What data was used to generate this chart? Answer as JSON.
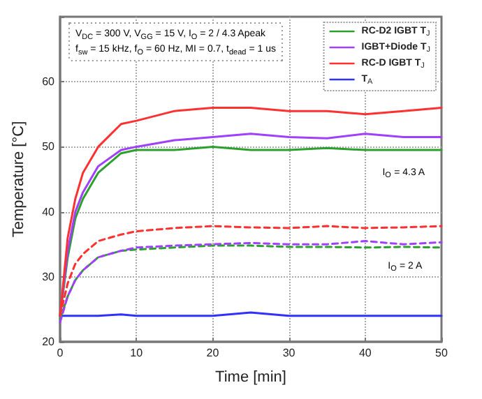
{
  "chart_data": {
    "type": "line",
    "xlabel": "Time [min]",
    "ylabel": "Temperature [°C]",
    "xlim": [
      0,
      50
    ],
    "xticks": [
      0,
      10,
      20,
      30,
      40,
      50
    ],
    "ylim": [
      20,
      70
    ],
    "yticks": [
      20,
      30,
      40,
      50,
      60,
      {
        "value": 70,
        "label": null
      }
    ],
    "grid": true,
    "legend": "top right",
    "marker": "none",
    "annotations": [
      "V$_{DC}$ = 300 V, V$_{GG}$ = 15 V, I$_{O}$ = 2 / 4.3 Apeak",
      "f$_{sw}$ = 15 kHz, f$_{O}$ = 60 Hz, MI = 0.7, t$_{dead}$ = 1 us",
      "I$_{O}$ = 4.3 A",
      "I$_{O}$ = 2 A"
    ],
    "x": [
      0,
      1,
      2,
      3,
      5,
      8,
      10,
      15,
      20,
      25,
      30,
      35,
      40,
      45,
      50
    ],
    "series": [
      {
        "name": "RC-D2 IGBT T$_{J}$",
        "color": "#2ca02c",
        "line_style": "solid",
        "values": [
          24,
          33,
          39,
          42,
          46,
          49,
          49.5,
          49.5,
          50,
          49.5,
          49.5,
          49.8,
          49.5,
          49.5,
          49.5
        ]
      },
      {
        "name": "IGBT+Diode T$_{J}$",
        "color": "#a040ff",
        "line_style": "solid",
        "values": [
          24,
          34,
          40,
          43,
          47,
          49.5,
          50,
          51,
          51.5,
          52,
          51.5,
          51.3,
          52,
          51.5,
          51.5
        ]
      },
      {
        "name": "RC-D IGBT T$_{J}$",
        "color": "#ff3030",
        "line_style": "solid",
        "values": [
          24,
          36,
          42,
          46,
          50,
          53.5,
          54,
          55.5,
          56,
          56,
          55.5,
          55.5,
          55,
          55.5,
          56
        ]
      },
      {
        "name": "T$_{A}$",
        "color": "#3030ff",
        "line_style": "solid",
        "values": [
          24,
          24,
          24,
          24,
          24,
          24.2,
          24,
          24,
          24,
          24.5,
          24,
          24,
          24,
          24,
          24
        ]
      },
      {
        "color": "#2ca02c",
        "line_style": "dashed",
        "values": [
          23.5,
          27,
          29.5,
          31,
          33,
          34,
          34.2,
          34.5,
          34.8,
          34.8,
          34.6,
          34.6,
          34.5,
          34.6,
          34.5
        ]
      },
      {
        "color": "#a040ff",
        "line_style": "dashed",
        "values": [
          23,
          27,
          29.5,
          31,
          33,
          34,
          34.5,
          34.8,
          35,
          35.2,
          35,
          35,
          35.5,
          35,
          35.3
        ]
      },
      {
        "color": "#ff3030",
        "line_style": "dashed",
        "values": [
          24,
          29,
          32,
          33.5,
          35.5,
          36.5,
          37,
          37.5,
          37.8,
          37.6,
          37.5,
          37.8,
          37.5,
          37.6,
          37.8
        ]
      }
    ]
  }
}
